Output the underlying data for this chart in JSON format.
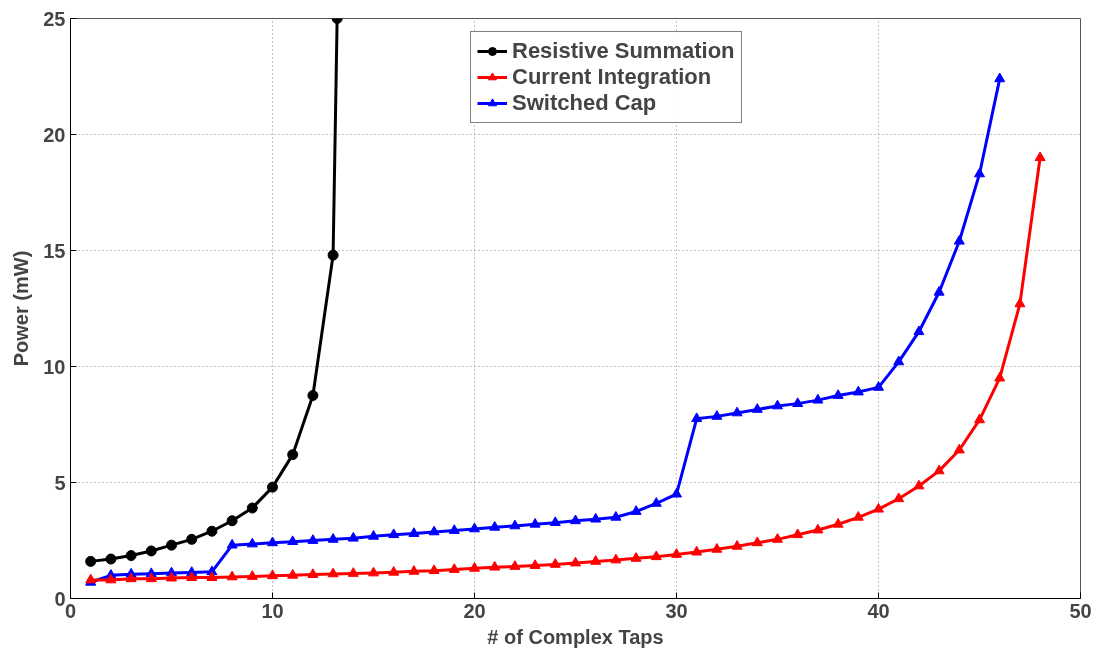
{
  "chart_data": {
    "type": "line",
    "xlabel": "# of Complex Taps",
    "ylabel": "Power (mW)",
    "xlim": [
      0,
      50
    ],
    "ylim": [
      0,
      25
    ],
    "xticks": [
      0,
      10,
      20,
      30,
      40,
      50
    ],
    "yticks": [
      0,
      5,
      10,
      15,
      20,
      25
    ],
    "grid": true,
    "legend": "top right",
    "line_style": "solid",
    "series": [
      {
        "name": "Resistive Summation",
        "color": "#000000",
        "marker": "circle",
        "x": [
          1,
          2,
          3,
          4,
          5,
          6,
          7,
          8,
          9,
          10,
          11,
          12,
          13,
          13.2
        ],
        "values": [
          1.6,
          1.7,
          1.85,
          2.05,
          2.3,
          2.55,
          2.9,
          3.35,
          3.9,
          4.8,
          6.2,
          8.75,
          14.8,
          25
        ]
      },
      {
        "name": "Current Integration",
        "color": "#ff0000",
        "marker": "triangle",
        "x": [
          1,
          2,
          3,
          4,
          5,
          6,
          7,
          8,
          9,
          10,
          11,
          12,
          13,
          14,
          15,
          16,
          17,
          18,
          19,
          20,
          21,
          22,
          23,
          24,
          25,
          26,
          27,
          28,
          29,
          30,
          31,
          32,
          33,
          34,
          35,
          36,
          37,
          38,
          39,
          40,
          41,
          42,
          43,
          44,
          45,
          46,
          47,
          48
        ],
        "values": [
          0.8,
          0.8,
          0.85,
          0.85,
          0.88,
          0.9,
          0.9,
          0.93,
          0.95,
          0.98,
          1.0,
          1.03,
          1.06,
          1.08,
          1.1,
          1.13,
          1.17,
          1.2,
          1.25,
          1.3,
          1.35,
          1.38,
          1.42,
          1.47,
          1.53,
          1.6,
          1.66,
          1.73,
          1.8,
          1.9,
          2.0,
          2.12,
          2.25,
          2.4,
          2.55,
          2.75,
          2.95,
          3.2,
          3.5,
          3.85,
          4.3,
          4.85,
          5.5,
          6.4,
          7.7,
          9.5,
          12.7,
          19.0
        ]
      },
      {
        "name": "Switched Cap",
        "color": "#0000ff",
        "marker": "triangle",
        "x": [
          1,
          2,
          3,
          4,
          5,
          6,
          7,
          8,
          9,
          10,
          11,
          12,
          13,
          14,
          15,
          16,
          17,
          18,
          19,
          20,
          21,
          22,
          23,
          24,
          25,
          26,
          27,
          28,
          29,
          30,
          31,
          32,
          33,
          34,
          35,
          36,
          37,
          38,
          39,
          40,
          41,
          42,
          43,
          44,
          45,
          46
        ],
        "values": [
          0.7,
          1.0,
          1.05,
          1.07,
          1.1,
          1.12,
          1.15,
          2.3,
          2.35,
          2.4,
          2.45,
          2.5,
          2.55,
          2.6,
          2.68,
          2.75,
          2.8,
          2.87,
          2.93,
          3.0,
          3.07,
          3.13,
          3.2,
          3.27,
          3.35,
          3.42,
          3.5,
          3.75,
          4.1,
          4.5,
          7.75,
          7.85,
          8.0,
          8.15,
          8.3,
          8.4,
          8.55,
          8.75,
          8.9,
          9.1,
          10.2,
          11.5,
          13.2,
          15.4,
          18.3,
          22.4
        ]
      }
    ]
  }
}
